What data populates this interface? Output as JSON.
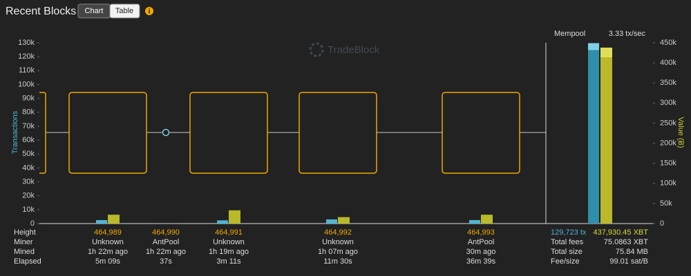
{
  "chart_data": {
    "type": "bar",
    "title": "Recent Blocks",
    "view_buttons": [
      "Chart",
      "Table"
    ],
    "watermark": "TradeBlock",
    "ylabel": "Transactions",
    "y2label": "Value (Ƀ)",
    "row_labels": [
      "Height",
      "Miner",
      "Mined",
      "Elapsed"
    ],
    "categories": [
      "464,989",
      "464,990",
      "464,991",
      "464,992",
      "464,993"
    ],
    "miners": [
      "Unknown",
      "AntPool",
      "Unknown",
      "Unknown",
      "AntPool"
    ],
    "mined": [
      "1h 22m ago",
      "1h 22m ago",
      "1h 19m ago",
      "1h 07m ago",
      "30m ago"
    ],
    "elapsed": [
      "5m 09s",
      "37s",
      "3m 11s",
      "11m 30s",
      "36m 39s"
    ],
    "series": [
      {
        "name": "Transactions",
        "color": "#4fb6d4",
        "values": [
          2500,
          50,
          2300,
          3000,
          2500
        ]
      },
      {
        "name": "Value",
        "color": "#b9b929",
        "axis": "y2",
        "values": [
          22000,
          100,
          33000,
          16000,
          22000
        ]
      }
    ],
    "ylim": [
      0,
      130000
    ],
    "yticks": [
      0,
      {
        "value": 10000,
        "label": "10k"
      },
      {
        "value": 20000,
        "label": "20k"
      },
      {
        "value": 30000,
        "label": "30k"
      },
      {
        "value": 40000,
        "label": "40k"
      },
      {
        "value": 50000,
        "label": "50k"
      },
      {
        "value": 60000,
        "label": "60k"
      },
      {
        "value": 70000,
        "label": "70k"
      },
      {
        "value": 80000,
        "label": "80k"
      },
      {
        "value": 90000,
        "label": "90k"
      },
      {
        "value": 100000,
        "label": "100k"
      },
      {
        "value": 110000,
        "label": "110k"
      },
      {
        "value": 120000,
        "label": "120k"
      },
      {
        "value": 130000,
        "label": "130k"
      }
    ],
    "y2lim": [
      0,
      450000
    ],
    "y2ticks": [
      0,
      {
        "value": 50000,
        "label": "50k"
      },
      {
        "value": 100000,
        "label": "100k"
      },
      {
        "value": 150000,
        "label": "150k"
      },
      {
        "value": 200000,
        "label": "200k"
      },
      {
        "value": 250000,
        "label": "250k"
      },
      {
        "value": 300000,
        "label": "300k"
      },
      {
        "value": 350000,
        "label": "350k"
      },
      {
        "value": 400000,
        "label": "400k"
      },
      {
        "value": 450000,
        "label": "450k"
      }
    ],
    "mempool": {
      "title": "Mempool",
      "rate": "3.33 tx/sec",
      "transactions": 129723,
      "transactions_label": "129,723 tx",
      "value": 437930.45,
      "value_label": "437,930.45 XBT",
      "stats": [
        [
          "Total fees",
          "75.0863 XBT"
        ],
        [
          "Total size",
          "75.84 MB"
        ],
        [
          "Fee/size",
          "99.01 sat/B"
        ]
      ]
    }
  }
}
